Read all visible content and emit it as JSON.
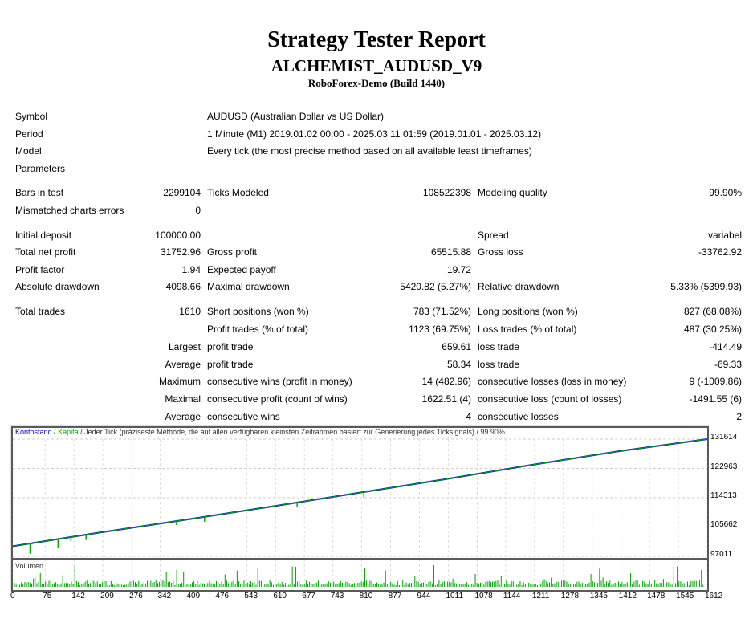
{
  "header": {
    "title": "Strategy Tester Report",
    "ea_name": "ALCHEMIST_AUDUSD_V9",
    "server": "RoboForex-Demo (Build 1440)"
  },
  "info": {
    "symbol_label": "Symbol",
    "symbol_value": "AUDUSD (Australian Dollar vs US Dollar)",
    "period_label": "Period",
    "period_value": "1 Minute (M1) 2019.01.02 00:00 - 2025.03.11 01:59 (2019.01.01 - 2025.03.12)",
    "model_label": "Model",
    "model_value": "Every tick (the most precise method based on all available least timeframes)",
    "parameters_label": "Parameters"
  },
  "stats": {
    "bars_label": "Bars in test",
    "bars_value": "2299104",
    "ticks_label": "Ticks Modeled",
    "ticks_value": "108522398",
    "quality_label": "Modeling quality",
    "quality_value": "99.90%",
    "mismatch_label": "Mismatched charts errors",
    "mismatch_value": "0",
    "deposit_label": "Initial deposit",
    "deposit_value": "100000.00",
    "spread_label": "Spread",
    "spread_value": "variabel",
    "net_label": "Total net profit",
    "net_value": "31752.96",
    "gprofit_label": "Gross profit",
    "gprofit_value": "65515.88",
    "gloss_label": "Gross loss",
    "gloss_value": "-33762.92",
    "pf_label": "Profit factor",
    "pf_value": "1.94",
    "ep_label": "Expected payoff",
    "ep_value": "19.72",
    "absdd_label": "Absolute drawdown",
    "absdd_value": "4098.66",
    "maxdd_label": "Maximal drawdown",
    "maxdd_value": "5420.82 (5.27%)",
    "reldd_label": "Relative drawdown",
    "reldd_value": "5.33% (5399.93)",
    "tt_label": "Total trades",
    "tt_value": "1610",
    "short_label": "Short positions (won %)",
    "short_value": "783 (71.52%)",
    "long_label": "Long positions (won %)",
    "long_value": "827 (68.08%)",
    "pt_label": "Profit trades (% of total)",
    "pt_value": "1123 (69.75%)",
    "lt_label": "Loss trades (% of total)",
    "lt_value": "487 (30.25%)",
    "largest_label": "Largest",
    "lpt_label": "profit trade",
    "lpt_value": "659.61",
    "llt_label": "loss trade",
    "llt_value": "-414.49",
    "average_label": "Average",
    "apt_label": "profit trade",
    "apt_value": "58.34",
    "alt_label": "loss trade",
    "alt_value": "-69.33",
    "maximum_label": "Maximum",
    "mcw_label": "consecutive wins (profit in money)",
    "mcw_value": "14 (482.96)",
    "mcl_label": "consecutive losses (loss in money)",
    "mcl_value": "9 (-1009.86)",
    "maximal_label": "Maximal",
    "mcp_label": "consecutive profit (count of wins)",
    "mcp_value": "1622.51 (4)",
    "mcls_label": "consecutive loss (count of losses)",
    "mcls_value": "-1491.55 (6)",
    "average2_label": "Average",
    "acw_label": "consecutive wins",
    "acw_value": "4",
    "acl_label": "consecutive losses",
    "acl_value": "2"
  },
  "chart": {
    "legend_balance": "Kontostand",
    "legend_sep1": " / ",
    "legend_equity": "Kapita",
    "legend_rest": " / Jeder Tick (präziseste Methode, die auf allen verfügbaren kleinsten Zeitrahmen basiert zur Generierung jedes Ticksignals) / 99.90%",
    "volume_label": "Volumen",
    "y_ticks": [
      "131614",
      "122963",
      "114313",
      "105662",
      "97011"
    ],
    "x_ticks": [
      "0",
      "75",
      "142",
      "209",
      "276",
      "342",
      "409",
      "476",
      "543",
      "610",
      "677",
      "743",
      "810",
      "877",
      "944",
      "1011",
      "1078",
      "1144",
      "1211",
      "1278",
      "1345",
      "1412",
      "1478",
      "1545",
      "1612"
    ],
    "balance_color": "#0000cc",
    "equity_color": "#00aa00"
  },
  "chart_data": {
    "type": "line",
    "series": [
      {
        "name": "Kontostand",
        "x": [
          0,
          200,
          400,
          600,
          800,
          1000,
          1200,
          1400,
          1612
        ],
        "y": [
          100000,
          104000,
          107800,
          111700,
          115700,
          119700,
          123900,
          127900,
          131614
        ]
      },
      {
        "name": "Kapita",
        "x": [
          0,
          200,
          400,
          600,
          800,
          1000,
          1200,
          1400,
          1612
        ],
        "y": [
          100000,
          104000,
          107800,
          111700,
          115700,
          119700,
          123900,
          127900,
          131614
        ]
      }
    ],
    "xlim": [
      0,
      1612
    ],
    "ylim": [
      97011,
      131614
    ],
    "grid": true
  }
}
